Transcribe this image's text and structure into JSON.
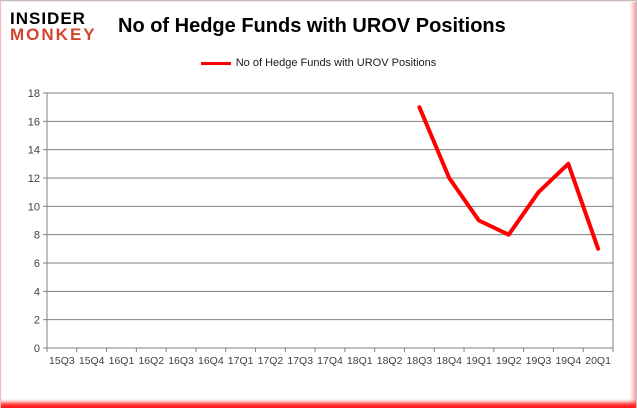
{
  "logo": {
    "line1": "INSIDER",
    "line2": "MONKEY"
  },
  "header": {
    "title": "No of Hedge Funds with UROV Positions"
  },
  "legend": {
    "label": "No of Hedge Funds with UROV Positions",
    "line_color": "#ff0000"
  },
  "colors": {
    "line_red": "#ff0000",
    "logo_red": "#d0452f",
    "grid": "#808080",
    "axis_text": "#3f3f3f"
  },
  "chart_data": {
    "type": "line",
    "title": "No of Hedge Funds with UROV Positions",
    "categories": [
      "15Q3",
      "15Q4",
      "16Q1",
      "16Q2",
      "16Q3",
      "16Q4",
      "17Q1",
      "17Q2",
      "17Q3",
      "17Q4",
      "18Q1",
      "18Q2",
      "18Q3",
      "18Q4",
      "19Q1",
      "19Q2",
      "19Q3",
      "19Q4",
      "20Q1"
    ],
    "series": [
      {
        "name": "No of Hedge Funds with UROV Positions",
        "color": "#ff0000",
        "values": [
          null,
          null,
          null,
          null,
          null,
          null,
          null,
          null,
          null,
          null,
          null,
          null,
          17,
          12,
          9,
          8,
          11,
          13,
          7
        ]
      }
    ],
    "xlabel": "",
    "ylabel": "",
    "ylim": [
      0,
      18
    ],
    "y_ticks": [
      0,
      2,
      4,
      6,
      8,
      10,
      12,
      14,
      16,
      18
    ],
    "grid": true,
    "legend_position": "top-center"
  }
}
